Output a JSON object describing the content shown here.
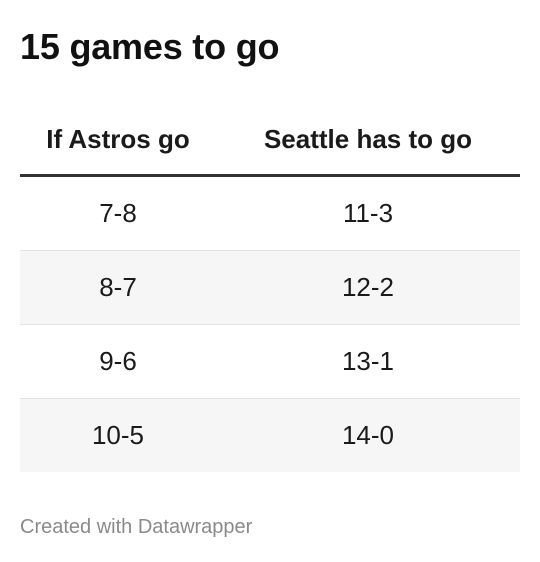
{
  "title": "15 games to go",
  "chart_data": {
    "type": "table",
    "columns": [
      "If Astros go",
      "Seattle has to go"
    ],
    "rows": [
      [
        "7-8",
        "11-3"
      ],
      [
        "8-7",
        "12-2"
      ],
      [
        "9-6",
        "13-1"
      ],
      [
        "10-5",
        "14-0"
      ]
    ]
  },
  "footer": "Created with Datawrapper",
  "colors": {
    "header_rule": "#333333",
    "stripe": "#f6f6f6",
    "row_divider": "#e4e4e4",
    "footer_text": "#8a8a8a"
  }
}
